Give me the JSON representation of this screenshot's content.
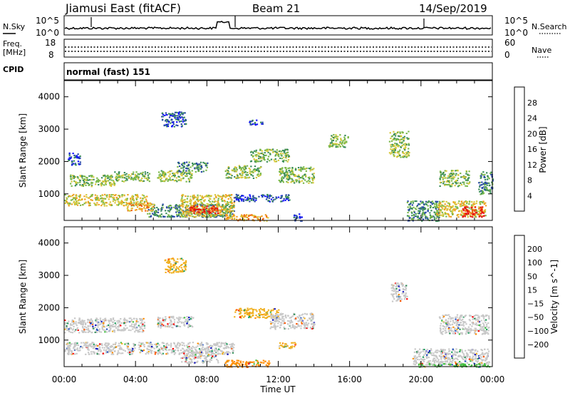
{
  "header": {
    "station": "Jiamusi East (fitACF)",
    "beam": "Beam 21",
    "date": "14/Sep/2019"
  },
  "top_panels": {
    "nsky_label": "N.Sky",
    "nsky_hi": "10^5",
    "nsky_lo": "10^0",
    "nsearch_label": "N.Search",
    "nsearch_hi": "10^5",
    "nsearch_lo": "10^0",
    "freq_label": "Freq.",
    "freq_unit": "[MHz]",
    "freq_hi": "18",
    "freq_lo": "8",
    "nave_label": "Nave",
    "nave_hi": "60",
    "nave_lo": "0",
    "cpid_label": "CPID",
    "cpid_value": "normal (fast) 151"
  },
  "colors": {
    "power_scale": [
      "#1010ff",
      "#2848a8",
      "#3a8c5a",
      "#7ab84a",
      "#d8c83c",
      "#f0a020",
      "#f06010",
      "#e81010"
    ],
    "velocity_scale": [
      "#ff0000",
      "#ff5500",
      "#ff8c00",
      "#f0b020",
      "#c8c8c8",
      "#c8c8c8",
      "#40c040",
      "#2f8f57",
      "#20a060",
      "#2050c0",
      "#1010c0"
    ]
  },
  "chart_data": [
    {
      "type": "heatmap",
      "panel": "power",
      "ylabel": "Slant Range [km]",
      "yticks": [
        "1000",
        "2000",
        "3000",
        "4000"
      ],
      "ylim": [
        180,
        4500
      ],
      "xlim_hours": [
        0,
        24
      ],
      "colorbar_label": "Power [dB]",
      "colorbar_ticks": [
        "4",
        "8",
        "12",
        "16",
        "20",
        "24",
        "28"
      ],
      "regions": [
        {
          "t0": 0.3,
          "t1": 2.8,
          "r0": 1250,
          "r1": 1600,
          "level": 3
        },
        {
          "t0": 2.8,
          "t1": 4.8,
          "r0": 1400,
          "r1": 1700,
          "level": 3
        },
        {
          "t0": 0.2,
          "t1": 0.9,
          "r0": 1900,
          "r1": 2300,
          "level": 1
        },
        {
          "t0": 0.0,
          "t1": 4.6,
          "r0": 650,
          "r1": 1000,
          "level": 4
        },
        {
          "t0": 4.6,
          "t1": 9.5,
          "r0": 300,
          "r1": 700,
          "level": 2
        },
        {
          "t0": 3.5,
          "t1": 5.0,
          "r0": 480,
          "r1": 750,
          "level": 5
        },
        {
          "t0": 5.2,
          "t1": 7.2,
          "r0": 1400,
          "r1": 1750,
          "level": 3
        },
        {
          "t0": 5.4,
          "t1": 6.8,
          "r0": 3100,
          "r1": 3550,
          "level": 1
        },
        {
          "t0": 6.3,
          "t1": 8.0,
          "r0": 1700,
          "r1": 2000,
          "level": 2
        },
        {
          "t0": 6.5,
          "t1": 9.5,
          "r0": 300,
          "r1": 1000,
          "level": 4
        },
        {
          "t0": 7.0,
          "t1": 8.6,
          "r0": 400,
          "r1": 650,
          "level": 7
        },
        {
          "t0": 9.5,
          "t1": 12.6,
          "r0": 780,
          "r1": 1000,
          "level": 1
        },
        {
          "t0": 9.0,
          "t1": 11.0,
          "r0": 1500,
          "r1": 1900,
          "level": 3
        },
        {
          "t0": 10.4,
          "t1": 12.6,
          "r0": 2000,
          "r1": 2400,
          "level": 3
        },
        {
          "t0": 12.0,
          "t1": 14.0,
          "r0": 1350,
          "r1": 1850,
          "level": 3
        },
        {
          "t0": 9.0,
          "t1": 11.4,
          "r0": 180,
          "r1": 380,
          "level": 5
        },
        {
          "t0": 10.3,
          "t1": 11.1,
          "r0": 3150,
          "r1": 3300,
          "level": 1
        },
        {
          "t0": 12.8,
          "t1": 13.3,
          "r0": 170,
          "r1": 400,
          "level": 1
        },
        {
          "t0": 14.8,
          "t1": 15.9,
          "r0": 2450,
          "r1": 2850,
          "level": 3
        },
        {
          "t0": 18.2,
          "t1": 19.3,
          "r0": 2150,
          "r1": 2950,
          "level": 3
        },
        {
          "t0": 19.2,
          "t1": 21.0,
          "r0": 180,
          "r1": 800,
          "level": 2
        },
        {
          "t0": 21.0,
          "t1": 22.7,
          "r0": 1250,
          "r1": 1750,
          "level": 3
        },
        {
          "t0": 20.8,
          "t1": 23.6,
          "r0": 300,
          "r1": 800,
          "level": 4
        },
        {
          "t0": 22.3,
          "t1": 23.5,
          "r0": 300,
          "r1": 620,
          "level": 7
        },
        {
          "t0": 23.2,
          "t1": 24.0,
          "r0": 1000,
          "r1": 1700,
          "level": 2
        }
      ]
    },
    {
      "type": "heatmap",
      "panel": "velocity",
      "ylabel": "Slant Range [km]",
      "xlabel": "Time UT",
      "yticks": [
        "1000",
        "2000",
        "3000",
        "4000"
      ],
      "ylim": [
        180,
        4500
      ],
      "xlim_hours": [
        0,
        24
      ],
      "xticks": [
        "00:00",
        "04:00",
        "08:00",
        "12:00",
        "16:00",
        "20:00",
        "00:00"
      ],
      "colorbar_label": "Velocity [m s^-1]",
      "colorbar_ticks": [
        "200",
        "100",
        "50",
        "15",
        "−15",
        "−50",
        "−100",
        "−200"
      ],
      "regions": [
        {
          "t0": 0.0,
          "t1": 4.5,
          "r0": 1250,
          "r1": 1700,
          "level": 4
        },
        {
          "t0": 0.0,
          "t1": 9.5,
          "r0": 580,
          "r1": 950,
          "level": 4
        },
        {
          "t0": 5.2,
          "t1": 7.2,
          "r0": 1400,
          "r1": 1750,
          "level": 4
        },
        {
          "t0": 5.6,
          "t1": 6.8,
          "r0": 3100,
          "r1": 3550,
          "level": 3
        },
        {
          "t0": 6.5,
          "t1": 8.6,
          "r0": 300,
          "r1": 700,
          "level": 4
        },
        {
          "t0": 9.0,
          "t1": 11.5,
          "r0": 180,
          "r1": 400,
          "level": 2
        },
        {
          "t0": 9.5,
          "t1": 12.0,
          "r0": 1700,
          "r1": 2000,
          "level": 3
        },
        {
          "t0": 11.5,
          "t1": 14.0,
          "r0": 1350,
          "r1": 1850,
          "level": 4
        },
        {
          "t0": 12.0,
          "t1": 13.0,
          "r0": 750,
          "r1": 950,
          "level": 3
        },
        {
          "t0": 18.3,
          "t1": 19.2,
          "r0": 2200,
          "r1": 2800,
          "level": 4
        },
        {
          "t0": 19.5,
          "t1": 23.8,
          "r0": 250,
          "r1": 750,
          "level": 4
        },
        {
          "t0": 21.0,
          "t1": 23.8,
          "r0": 1200,
          "r1": 1800,
          "level": 4
        },
        {
          "t0": 19.8,
          "t1": 23.8,
          "r0": 180,
          "r1": 300,
          "level": 6
        }
      ]
    }
  ]
}
